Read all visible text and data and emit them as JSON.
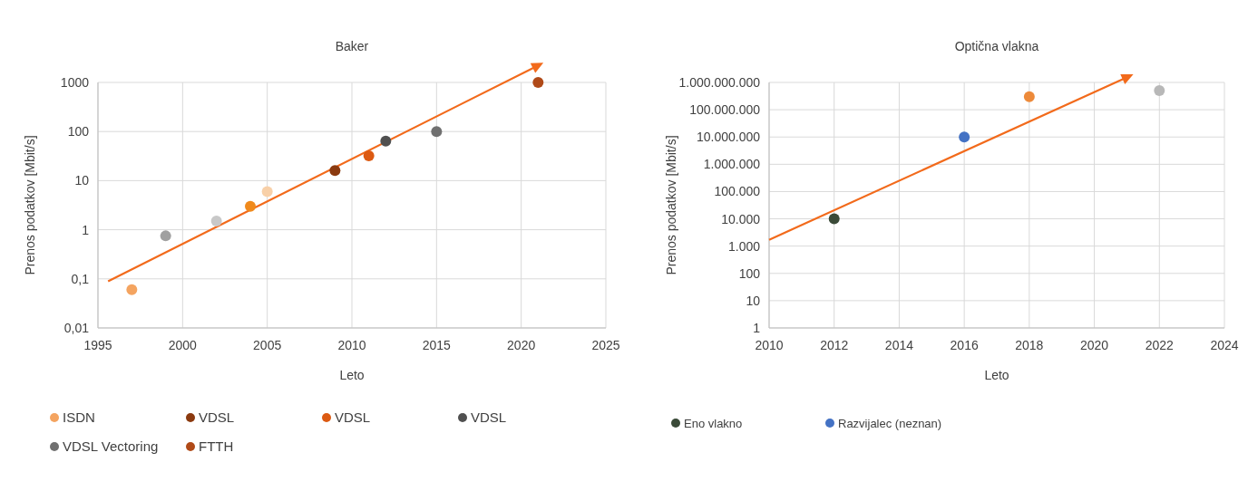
{
  "chart_data": [
    {
      "type": "scatter",
      "title": "Baker",
      "xlabel": "Leto",
      "ylabel": "Prenos podatkov [Mbit/s]",
      "log": "y",
      "grid": true,
      "marker": "circle",
      "legend": "bottom",
      "xlim": [
        1995,
        2025
      ],
      "xticks": [
        1995,
        2000,
        2005,
        2010,
        2015,
        2020,
        2025
      ],
      "ylim": [
        0.01,
        1000
      ],
      "yticks": [
        {
          "value": 0.01,
          "label": "0,01"
        },
        {
          "value": 0.1,
          "label": "0,1"
        },
        1,
        10,
        100,
        1000
      ],
      "series": [
        {
          "name": "ISDN",
          "color": "#f4a460",
          "x": [
            1997
          ],
          "values": [
            0.06
          ]
        },
        {
          "color": "#a0a0a0",
          "x": [
            1999
          ],
          "values": [
            0.75
          ]
        },
        {
          "color": "#c8c8c8",
          "x": [
            2002
          ],
          "values": [
            1.5
          ]
        },
        {
          "color": "#f08a1c",
          "x": [
            2004
          ],
          "values": [
            3
          ]
        },
        {
          "color": "#f8d0a8",
          "x": [
            2005
          ],
          "values": [
            6
          ]
        },
        {
          "name": "VDSL",
          "color": "#8b3a0f",
          "x": [
            2009
          ],
          "values": [
            16
          ]
        },
        {
          "name": "VDSL",
          "color": "#dc5a12",
          "x": [
            2011
          ],
          "values": [
            32
          ]
        },
        {
          "name": "VDSL",
          "color": "#505050",
          "x": [
            2012
          ],
          "values": [
            64
          ]
        },
        {
          "name": "VDSL Vectoring",
          "color": "#707070",
          "x": [
            2015
          ],
          "values": [
            100
          ]
        },
        {
          "name": "FTTH",
          "color": "#b04a18",
          "x": [
            2021
          ],
          "values": [
            1000
          ]
        }
      ]
    },
    {
      "type": "scatter",
      "title": "Optična vlakna",
      "xlabel": "Leto",
      "ylabel": "Prenos podatkov [Mbit/s]",
      "log": "y",
      "grid": true,
      "marker": "circle",
      "legend": "bottom",
      "xlim": [
        2010,
        2024
      ],
      "xticks": [
        2010,
        2012,
        2014,
        2016,
        2018,
        2020,
        2022,
        2024
      ],
      "ylim": [
        1,
        1000000000
      ],
      "yticks": [
        1,
        10,
        100,
        {
          "value": 1000,
          "label": "1.000"
        },
        {
          "value": 10000,
          "label": "10.000"
        },
        {
          "value": 100000,
          "label": "100.000"
        },
        {
          "value": 1000000,
          "label": "1.000.000"
        },
        {
          "value": 10000000,
          "label": "10.000.000"
        },
        {
          "value": 100000000,
          "label": "100.000.000"
        },
        {
          "value": 1000000000,
          "label": "1.000.000.000"
        }
      ],
      "series": [
        {
          "name": "Eno vlakno",
          "color": "#3a4a38",
          "x": [
            2012
          ],
          "values": [
            10000
          ]
        },
        {
          "name": "Razvijalec (neznan)",
          "color": "#4472c4",
          "x": [
            2016
          ],
          "values": [
            10000000
          ]
        },
        {
          "color": "#ed8a3a",
          "x": [
            2018
          ],
          "values": [
            300000000
          ]
        },
        {
          "color": "#b8b8b8",
          "x": [
            2022
          ],
          "values": [
            500000000
          ]
        }
      ]
    }
  ]
}
